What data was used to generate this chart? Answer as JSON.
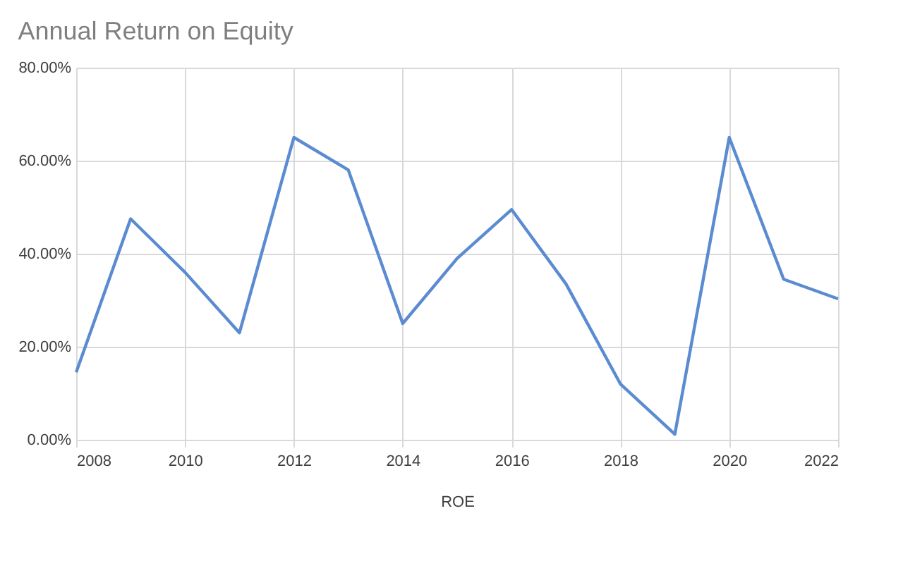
{
  "chart_data": {
    "type": "line",
    "title": "Annual Return on Equity",
    "xlabel": "ROE",
    "x": [
      2008,
      2009,
      2010,
      2011,
      2012,
      2013,
      2014,
      2015,
      2016,
      2017,
      2018,
      2019,
      2020,
      2021,
      2022
    ],
    "series": [
      {
        "color": "#5b8bd0",
        "values": [
          14.5,
          47.5,
          36,
          23,
          65,
          58,
          25,
          39,
          49.5,
          33.5,
          12,
          1.2,
          65,
          34.5,
          30.3
        ]
      }
    ],
    "xlim": [
      2008,
      2022
    ],
    "xticks": [
      2008,
      2010,
      2012,
      2014,
      2016,
      2018,
      2020,
      2022
    ],
    "ylim": [
      0,
      80
    ],
    "yticks": [
      {
        "value": 0,
        "label": "0.00%"
      },
      {
        "value": 20,
        "label": "20.00%"
      },
      {
        "value": 40,
        "label": "40.00%"
      },
      {
        "value": 60,
        "label": "60.00%"
      },
      {
        "value": 80,
        "label": "80.00%"
      }
    ],
    "grid": true,
    "marker": "none",
    "line_style": "solid"
  }
}
